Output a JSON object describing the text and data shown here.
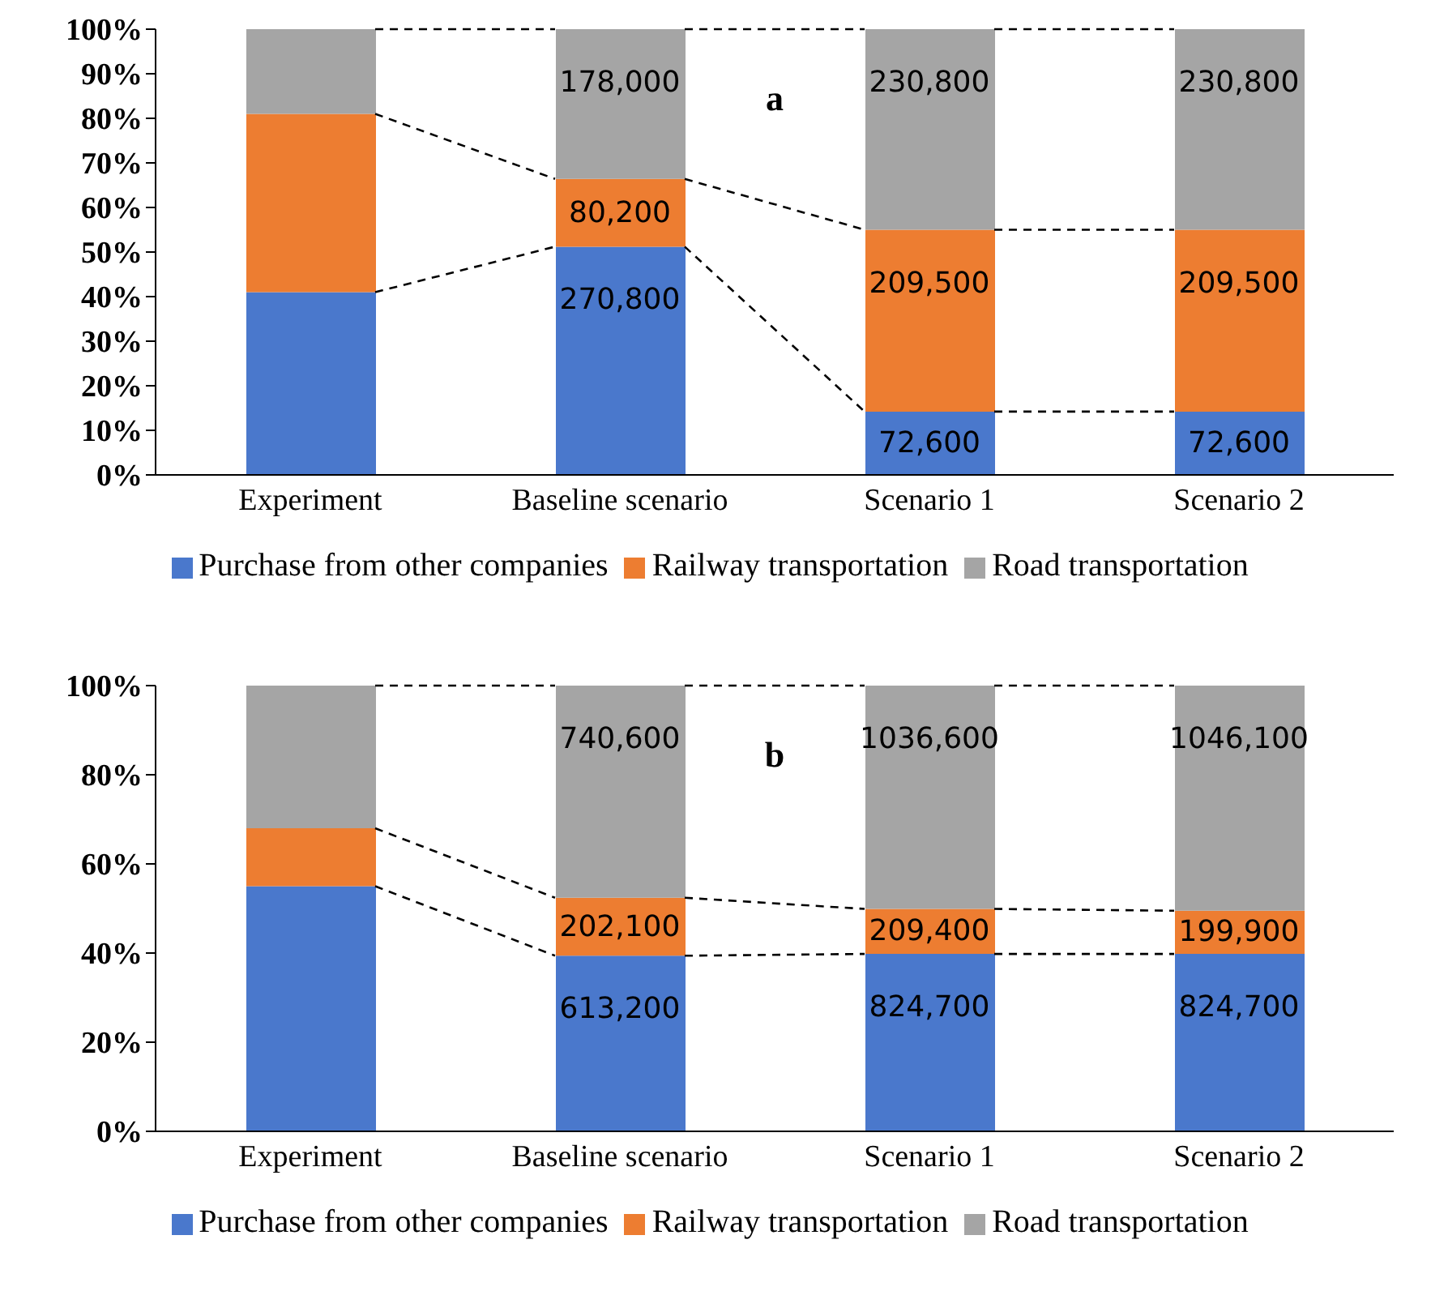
{
  "chart_data": [
    {
      "type": "bar",
      "title": "a",
      "stacked": true,
      "categories": [
        "Experiment",
        "Baseline scenario",
        "Scenario 1",
        "Scenario 2"
      ],
      "ylim": [
        0,
        100
      ],
      "yticks": [
        {
          "value": 0,
          "label": "0%"
        },
        {
          "value": 10,
          "label": "10%"
        },
        {
          "value": 20,
          "label": "20%"
        },
        {
          "value": 30,
          "label": "30%"
        },
        {
          "value": 40,
          "label": "40%"
        },
        {
          "value": 50,
          "label": "50%"
        },
        {
          "value": 60,
          "label": "60%"
        },
        {
          "value": 70,
          "label": "70%"
        },
        {
          "value": 80,
          "label": "80%"
        },
        {
          "value": 90,
          "label": "90%"
        },
        {
          "value": 100,
          "label": "100%"
        }
      ],
      "legend": "bottom",
      "grid": false,
      "series": [
        {
          "name": "Purchase from other companies",
          "color": "#4a78cc",
          "values": [
            41,
            51.2,
            14.2,
            14.2
          ]
        },
        {
          "name": "Railway transportation",
          "color": "#ed7d31",
          "values": [
            40,
            15.2,
            40.8,
            40.8
          ]
        },
        {
          "name": "Road transportation",
          "color": "#a5a5a5",
          "values": [
            19,
            33.6,
            45,
            45
          ]
        }
      ],
      "annotations": [
        {
          "text": "270,800",
          "x": "Baseline scenario",
          "y": 51.2
        },
        {
          "text": "80,200",
          "x": "Baseline scenario",
          "y": 66.4
        },
        {
          "text": "178,000",
          "x": "Baseline scenario",
          "y": 100
        },
        {
          "text": "72,600",
          "x": "Scenario 1",
          "y": 14.2
        },
        {
          "text": "209,500",
          "x": "Scenario 1",
          "y": 55
        },
        {
          "text": "230,800",
          "x": "Scenario 1",
          "y": 100
        },
        {
          "text": "72,600",
          "x": "Scenario 2",
          "y": 14.2
        },
        {
          "text": "209,500",
          "x": "Scenario 2",
          "y": 55
        },
        {
          "text": "230,800",
          "x": "Scenario 2",
          "y": 100
        }
      ]
    },
    {
      "type": "bar",
      "title": "b",
      "stacked": true,
      "categories": [
        "Experiment",
        "Baseline scenario",
        "Scenario 1",
        "Scenario 2"
      ],
      "ylim": [
        0,
        100
      ],
      "yticks": [
        {
          "value": 0,
          "label": "0%"
        },
        {
          "value": 20,
          "label": "20%"
        },
        {
          "value": 40,
          "label": "40%"
        },
        {
          "value": 60,
          "label": "60%"
        },
        {
          "value": 80,
          "label": "80%"
        },
        {
          "value": 100,
          "label": "100%"
        }
      ],
      "legend": "bottom",
      "grid": false,
      "series": [
        {
          "name": "Purchase from other companies",
          "color": "#4a78cc",
          "values": [
            55,
            39.4,
            39.8,
            39.8
          ]
        },
        {
          "name": "Railway transportation",
          "color": "#ed7d31",
          "values": [
            13,
            13,
            10.1,
            9.7
          ]
        },
        {
          "name": "Road transportation",
          "color": "#a5a5a5",
          "values": [
            32,
            47.6,
            50.1,
            50.5
          ]
        }
      ],
      "annotations": [
        {
          "text": "613,200",
          "x": "Baseline scenario",
          "y": 39.4
        },
        {
          "text": "202,100",
          "x": "Baseline scenario",
          "y": 52.4
        },
        {
          "text": "740,600",
          "x": "Baseline scenario",
          "y": 100
        },
        {
          "text": "824,700",
          "x": "Scenario 1",
          "y": 39.8
        },
        {
          "text": "209,400",
          "x": "Scenario 1",
          "y": 49.9
        },
        {
          "text": "1036,600",
          "x": "Scenario 1",
          "y": 100
        },
        {
          "text": "824,700",
          "x": "Scenario 2",
          "y": 39.8
        },
        {
          "text": "199,900",
          "x": "Scenario 2",
          "y": 49.5
        },
        {
          "text": "1046,100",
          "x": "Scenario 2",
          "y": 100
        }
      ]
    }
  ]
}
